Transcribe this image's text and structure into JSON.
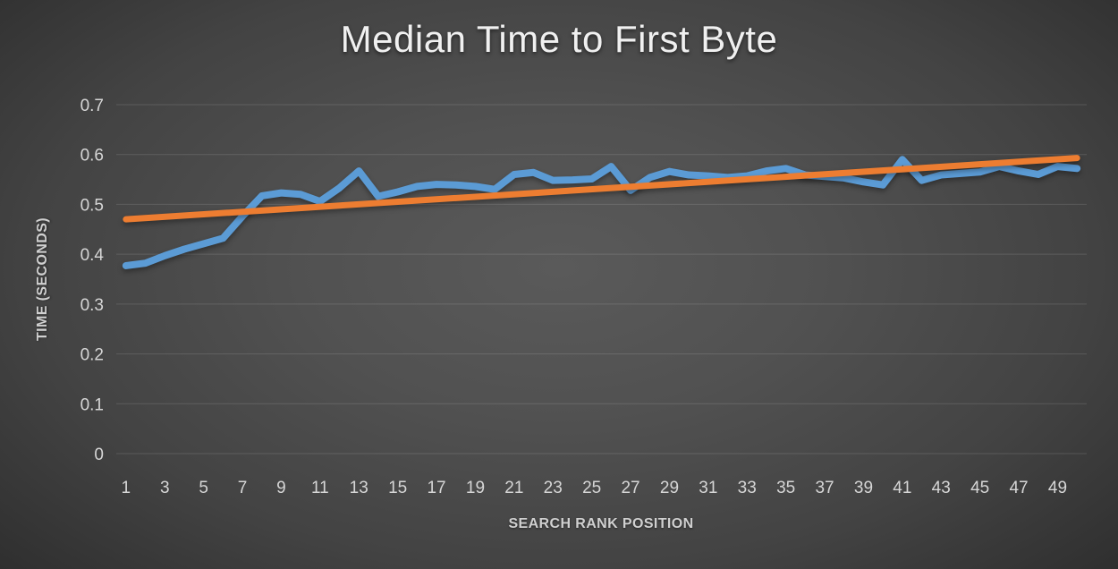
{
  "chart_data": {
    "type": "line",
    "title": "Median Time to First Byte",
    "xlabel": "SEARCH RANK POSITION",
    "ylabel": "TIME (SECONDS)",
    "x": [
      1,
      2,
      3,
      4,
      5,
      6,
      7,
      8,
      9,
      10,
      11,
      12,
      13,
      14,
      15,
      16,
      17,
      18,
      19,
      20,
      21,
      22,
      23,
      24,
      25,
      26,
      27,
      28,
      29,
      30,
      31,
      32,
      33,
      34,
      35,
      36,
      37,
      38,
      39,
      40,
      41,
      42,
      43,
      44,
      45,
      46,
      47,
      48,
      49,
      50
    ],
    "series": [
      {
        "role": "data",
        "color": "#5B9BD5",
        "values": [
          0.377,
          0.382,
          0.397,
          0.41,
          0.421,
          0.432,
          0.476,
          0.517,
          0.523,
          0.52,
          0.506,
          0.533,
          0.567,
          0.516,
          0.525,
          0.536,
          0.54,
          0.539,
          0.536,
          0.53,
          0.56,
          0.564,
          0.548,
          0.549,
          0.551,
          0.576,
          0.528,
          0.554,
          0.566,
          0.559,
          0.557,
          0.554,
          0.557,
          0.567,
          0.572,
          0.559,
          0.556,
          0.553,
          0.545,
          0.539,
          0.59,
          0.548,
          0.559,
          0.562,
          0.565,
          0.576,
          0.567,
          0.56,
          0.576,
          0.572
        ]
      },
      {
        "role": "trendline",
        "color": "#ED7D31",
        "endpoint_values": [
          0.47,
          0.593
        ]
      }
    ],
    "ylim": [
      0,
      0.7
    ],
    "y_tick_labels": [
      "0.7",
      "0.6",
      "0.5",
      "0.4",
      "0.3",
      "0.2",
      "0.1",
      "0"
    ],
    "x_tick_labels": [
      "1",
      "3",
      "5",
      "7",
      "9",
      "11",
      "13",
      "15",
      "17",
      "19",
      "21",
      "23",
      "25",
      "27",
      "29",
      "31",
      "33",
      "35",
      "37",
      "39",
      "41",
      "43",
      "45",
      "47",
      "49"
    ],
    "grid": "horizontal",
    "legend": "none",
    "background": "dark-gray-radial-gradient",
    "text_color": "#d6d6d6"
  }
}
